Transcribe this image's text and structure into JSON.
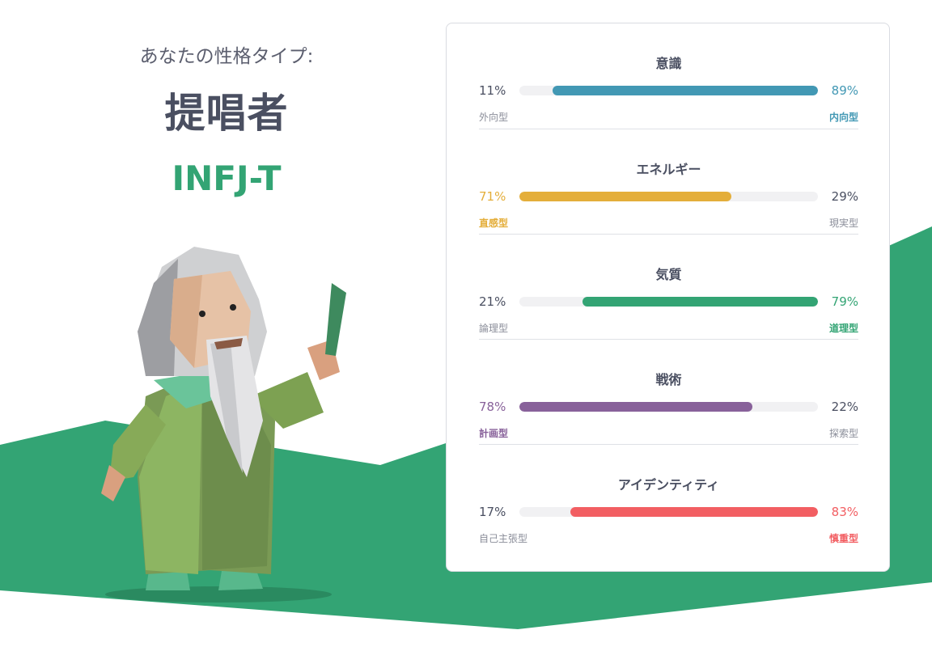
{
  "result": {
    "intro": "あなたの性格タイプ:",
    "type_name": "提唱者",
    "type_code": "INFJ-T",
    "accent_color": "#33a474"
  },
  "traits": [
    {
      "title": "意識",
      "left_pct": "11%",
      "right_pct": "89%",
      "left_label": "外向型",
      "right_label": "内向型",
      "fill": 0.89,
      "dominant": "right",
      "color": "#4298b4"
    },
    {
      "title": "エネルギー",
      "left_pct": "71%",
      "right_pct": "29%",
      "left_label": "直感型",
      "right_label": "現実型",
      "fill": 0.71,
      "dominant": "left",
      "color": "#e4ae3a"
    },
    {
      "title": "気質",
      "left_pct": "21%",
      "right_pct": "79%",
      "left_label": "論理型",
      "right_label": "道理型",
      "fill": 0.79,
      "dominant": "right",
      "color": "#33a474"
    },
    {
      "title": "戦術",
      "left_pct": "78%",
      "right_pct": "22%",
      "left_label": "計画型",
      "right_label": "探索型",
      "fill": 0.78,
      "dominant": "left",
      "color": "#88619a"
    },
    {
      "title": "アイデンティティ",
      "left_pct": "17%",
      "right_pct": "83%",
      "left_label": "自己主張型",
      "right_label": "慎重型",
      "fill": 0.83,
      "dominant": "right",
      "color": "#f25e62"
    }
  ]
}
